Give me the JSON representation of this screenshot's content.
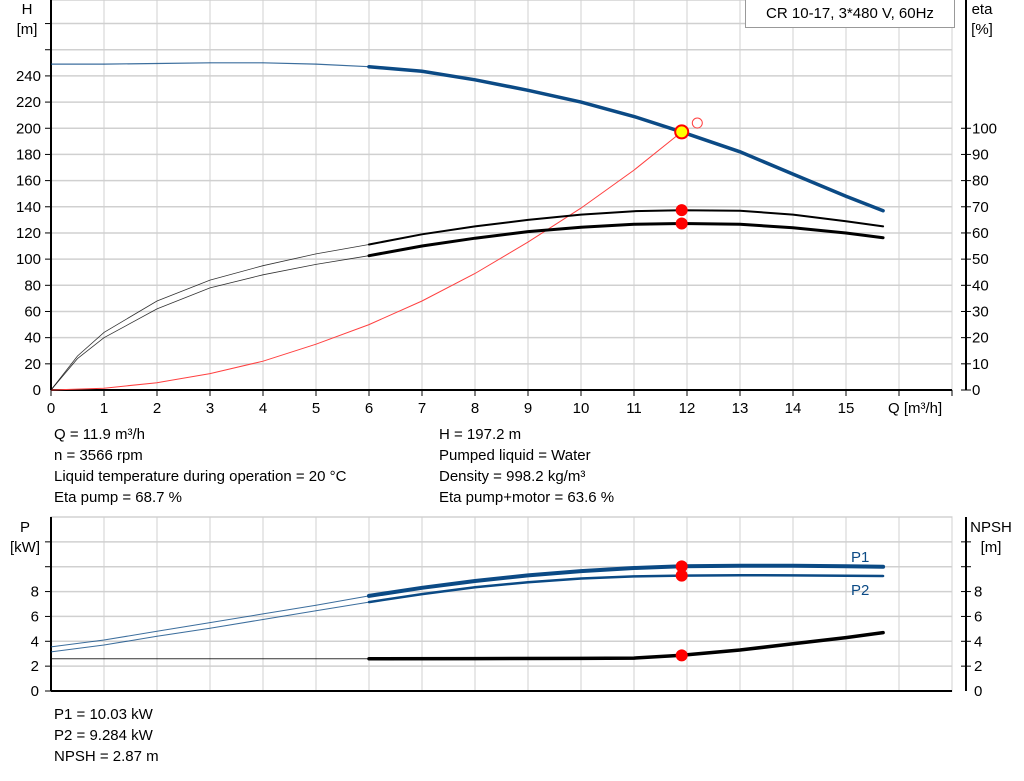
{
  "title": "CR 10-17, 3*480 V, 60Hz",
  "colors": {
    "head": "#0b4a85",
    "eta": "#000000",
    "system": "#ff4040",
    "point": "#ff0000",
    "duty_fill": "#ffff00",
    "grid": "#d0d0d0"
  },
  "chart_data": [
    {
      "type": "line",
      "xlabel": "Q [m³/h]",
      "ylabel_left": [
        "H",
        "[m]"
      ],
      "ylabel_right": [
        "eta",
        "[%]"
      ],
      "xlim": [
        0,
        17
      ],
      "ylim_left": [
        0,
        298
      ],
      "ylim_right": [
        0,
        149
      ],
      "xticks": [
        0,
        1,
        2,
        3,
        4,
        5,
        6,
        7,
        8,
        9,
        10,
        11,
        12,
        13,
        14,
        15
      ],
      "yticks_left": [
        0,
        20,
        40,
        60,
        80,
        100,
        120,
        140,
        160,
        180,
        200,
        220,
        240
      ],
      "yticks_right": [
        0,
        10,
        20,
        30,
        40,
        50,
        60,
        70,
        80,
        90,
        100
      ],
      "grid": true,
      "series": [
        {
          "axis": "left",
          "color": "#0b4a85",
          "x": [
            0,
            1,
            2,
            3,
            4,
            5,
            6,
            7,
            8,
            9,
            10,
            11,
            11.9,
            13,
            14,
            15,
            15.7
          ],
          "y": [
            249,
            249,
            249.5,
            250,
            250,
            249,
            247,
            243.5,
            237,
            229,
            220,
            209,
            197.2,
            182,
            165,
            148,
            137
          ]
        },
        {
          "axis": "right",
          "color": "#000000",
          "x": [
            0,
            0.5,
            1,
            2,
            3,
            4,
            5,
            6,
            7,
            8,
            9,
            10,
            11,
            11.9,
            13,
            14,
            15,
            15.7
          ],
          "y": [
            0,
            13,
            22,
            34,
            42,
            47.5,
            52,
            55.6,
            59.5,
            62.5,
            65,
            67,
            68.3,
            68.7,
            68.5,
            67,
            64.5,
            62.5
          ]
        },
        {
          "axis": "right",
          "color": "#000000",
          "x": [
            0,
            0.5,
            1,
            2,
            3,
            4,
            5,
            6,
            7,
            8,
            9,
            10,
            11,
            11.9,
            13,
            14,
            15,
            15.7
          ],
          "y": [
            0,
            12,
            20,
            31,
            39,
            44,
            48,
            51.3,
            55,
            58,
            60.5,
            62.2,
            63.3,
            63.6,
            63.3,
            62,
            60,
            58.2
          ]
        },
        {
          "axis": "left",
          "color": "#ff4040",
          "x": [
            0,
            1,
            2,
            3,
            4,
            5,
            6,
            7,
            8,
            9,
            10,
            11,
            11.9
          ],
          "y": [
            0,
            1.4,
            5.6,
            12.5,
            22,
            35,
            50,
            68,
            89,
            113,
            139,
            168,
            197.2
          ]
        }
      ],
      "duty_point": {
        "q": 11.9,
        "h": 197.2,
        "eta_pump": 68.7,
        "eta_total": 63.6
      },
      "open_point": {
        "q": 12.1,
        "h": 204
      }
    },
    {
      "type": "line",
      "ylabel_left": [
        "P",
        "[kW]"
      ],
      "ylabel_right": [
        "NPSH",
        "[m]"
      ],
      "xlim": [
        0,
        17
      ],
      "ylim": [
        0,
        14
      ],
      "yticks": [
        0,
        2,
        4,
        6,
        8
      ],
      "grid": true,
      "series": [
        {
          "name": "P1",
          "color": "#0b4a85",
          "x": [
            0,
            1,
            2,
            3,
            4,
            5,
            6,
            7,
            8,
            9,
            10,
            11,
            11.9,
            13,
            14,
            15,
            15.7
          ],
          "y": [
            3.55,
            4.1,
            4.8,
            5.5,
            6.2,
            6.9,
            7.65,
            8.3,
            8.85,
            9.3,
            9.65,
            9.9,
            10.03,
            10.08,
            10.07,
            10.03,
            10.0
          ]
        },
        {
          "name": "P2",
          "color": "#0b4a85",
          "x": [
            0,
            1,
            2,
            3,
            4,
            5,
            6,
            7,
            8,
            9,
            10,
            11,
            11.9,
            13,
            14,
            15,
            15.7
          ],
          "y": [
            3.15,
            3.7,
            4.4,
            5.05,
            5.75,
            6.45,
            7.15,
            7.8,
            8.35,
            8.75,
            9.05,
            9.22,
            9.284,
            9.32,
            9.3,
            9.28,
            9.25
          ]
        },
        {
          "name": "",
          "color": "#000000",
          "x": [
            0,
            2,
            4,
            6,
            8,
            10,
            11,
            11.9,
            13,
            14,
            15,
            15.7
          ],
          "y": [
            2.6,
            2.6,
            2.6,
            2.6,
            2.61,
            2.62,
            2.65,
            2.87,
            3.3,
            3.8,
            4.3,
            4.7
          ]
        }
      ]
    }
  ],
  "info_top": {
    "q": "Q = 11.9 m³/h",
    "n": "n = 3566 rpm",
    "temp": "Liquid temperature during operation = 20 °C",
    "eta_pump": "Eta pump = 68.7 %",
    "h": "H = 197.2 m",
    "liquid": "Pumped liquid = Water",
    "density": "Density = 998.2 kg/m³",
    "eta_total": "Eta pump+motor = 63.6 %"
  },
  "info_bottom": {
    "p1": "P1 = 10.03 kW",
    "p2": "P2 = 9.284 kW",
    "npsh": "NPSH = 2.87 m"
  }
}
